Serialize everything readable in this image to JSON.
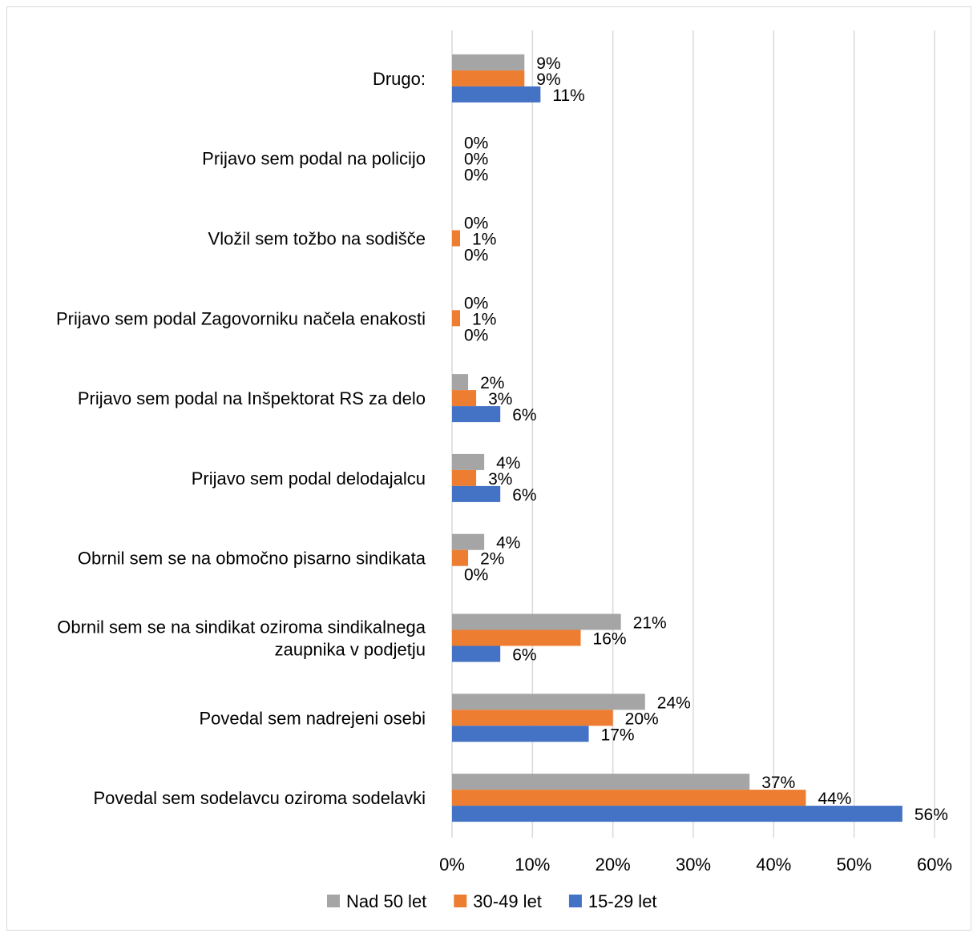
{
  "chart_data": {
    "type": "bar",
    "orientation": "horizontal",
    "title": "",
    "xlabel": "",
    "ylabel": "",
    "xlim": [
      0,
      60
    ],
    "ticks": [
      "0%",
      "10%",
      "20%",
      "30%",
      "40%",
      "50%",
      "60%"
    ],
    "tick_values": [
      0,
      10,
      20,
      30,
      40,
      50,
      60
    ],
    "grid": "vertical",
    "legend_position": "bottom",
    "categories": [
      [
        "Drugo:"
      ],
      [
        "Prijavo sem podal na policijo"
      ],
      [
        "Vložil sem tožbo na sodišče"
      ],
      [
        "Prijavo sem podal Zagovorniku načela enakosti"
      ],
      [
        "Prijavo sem podal na Inšpektorat RS za delo"
      ],
      [
        "Prijavo sem podal delodajalcu"
      ],
      [
        "Obrnil sem se na območno pisarno sindikata"
      ],
      [
        "Obrnil sem se na sindikat oziroma sindikalnega",
        "zaupnika v podjetju"
      ],
      [
        "Povedal sem nadrejeni osebi"
      ],
      [
        "Povedal sem sodelavcu oziroma sodelavki"
      ]
    ],
    "series": [
      {
        "name": "Nad 50 let",
        "color": "#a5a5a5",
        "values": [
          9,
          0,
          0,
          0,
          2,
          4,
          4,
          21,
          24,
          37
        ]
      },
      {
        "name": "30-49 let",
        "color": "#ed7d31",
        "values": [
          9,
          0,
          1,
          1,
          3,
          3,
          2,
          16,
          20,
          44
        ]
      },
      {
        "name": "15-29 let",
        "color": "#4472c4",
        "values": [
          11,
          0,
          0,
          0,
          6,
          6,
          0,
          6,
          17,
          56
        ]
      }
    ],
    "value_suffix": "%"
  }
}
